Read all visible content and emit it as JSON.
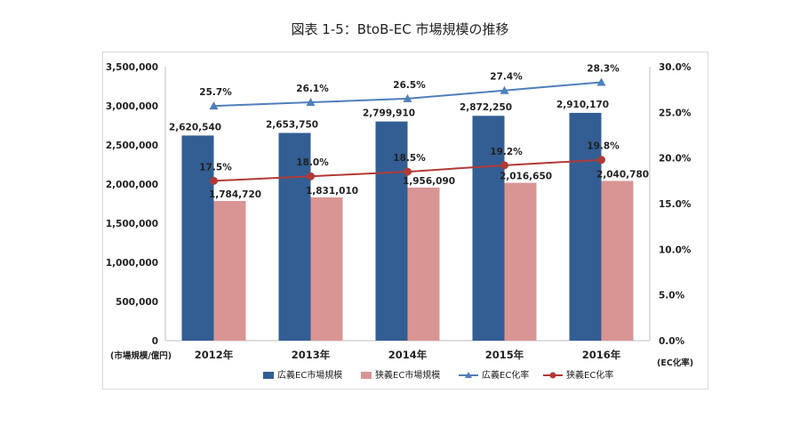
{
  "title": "図表 1-5：BtoB-EC 市場規模の推移",
  "chart_data": {
    "type": "bar",
    "categories": [
      "2012年",
      "2013年",
      "2014年",
      "2015年",
      "2016年"
    ],
    "left_axis": {
      "unit_label": "(市場規模/億円)",
      "ylim": [
        0,
        3500000
      ],
      "ticks": [
        "0",
        "500,000",
        "1,000,000",
        "1,500,000",
        "2,000,000",
        "2,500,000",
        "3,000,000",
        "3,500,000"
      ]
    },
    "right_axis": {
      "unit_label": "(EC化率)",
      "ylim": [
        0,
        30
      ],
      "ticks": [
        "0.0%",
        "5.0%",
        "10.0%",
        "15.0%",
        "20.0%",
        "25.0%",
        "30.0%"
      ]
    },
    "bar_series": [
      {
        "name": "広義EC市場規模",
        "color": "#325e94",
        "values": [
          2620540,
          2653750,
          2799910,
          2872250,
          2910170
        ],
        "labels": [
          "2,620,540",
          "2,653,750",
          "2,799,910",
          "2,872,250",
          "2,910,170"
        ]
      },
      {
        "name": "狭義EC市場規模",
        "color": "#d99594",
        "values": [
          1784720,
          1831010,
          1956090,
          2016650,
          2040780
        ],
        "labels": [
          "1,784,720",
          "1,831,010",
          "1,956,090",
          "2,016,650",
          "2,040,780"
        ]
      }
    ],
    "line_series": [
      {
        "name": "広義EC化率",
        "color": "#4f7fbb",
        "marker": "triangle",
        "values": [
          25.7,
          26.1,
          26.5,
          27.4,
          28.3
        ],
        "labels": [
          "25.7%",
          "26.1%",
          "26.5%",
          "27.4%",
          "28.3%"
        ]
      },
      {
        "name": "狭義EC化率",
        "color": "#b13a36",
        "marker": "circle",
        "values": [
          17.5,
          18.0,
          18.5,
          19.2,
          19.8
        ],
        "labels": [
          "17.5%",
          "18.0%",
          "18.5%",
          "19.2%",
          "19.8%"
        ]
      }
    ],
    "legend": {
      "position": "bottom"
    },
    "grid": false
  }
}
